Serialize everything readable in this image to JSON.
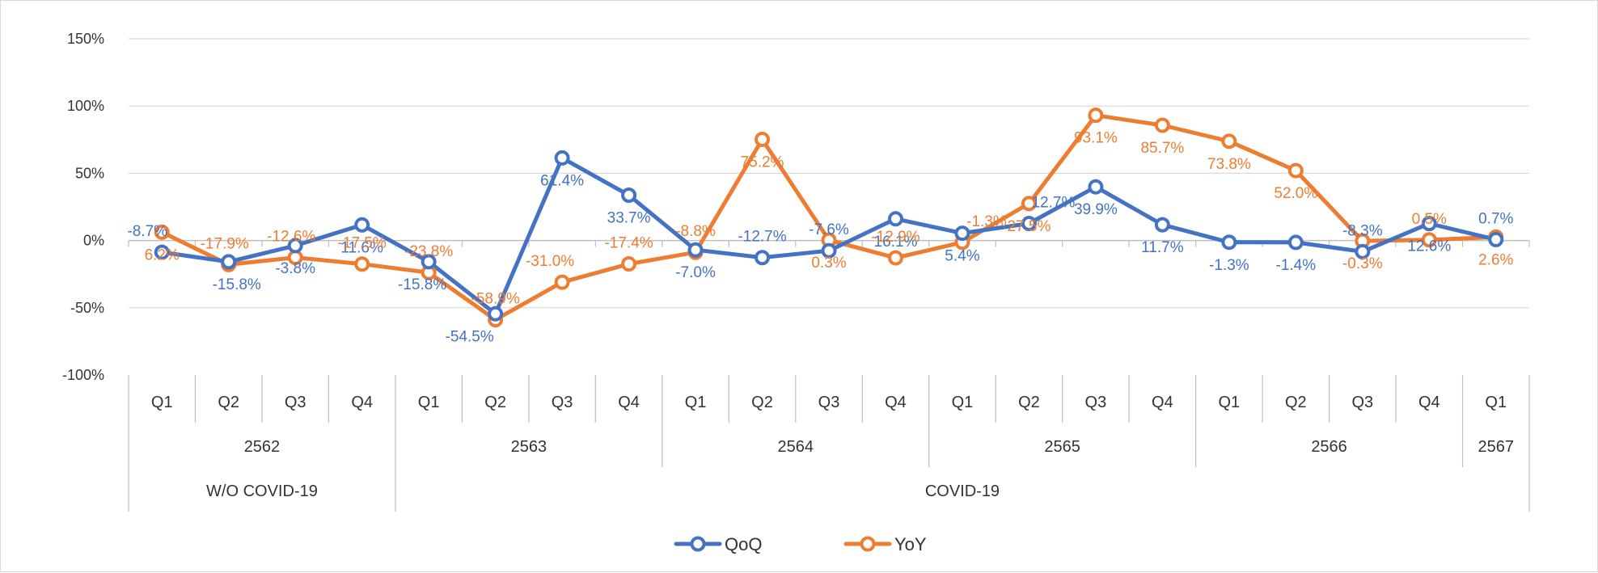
{
  "chart_data": {
    "type": "line",
    "title": "",
    "xlabel": "",
    "ylabel": "",
    "ylim": [
      -100,
      150
    ],
    "yticks": [
      "150%",
      "100%",
      "50%",
      "0%",
      "-50%",
      "-100%"
    ],
    "ytick_values": [
      150,
      100,
      50,
      0,
      -50,
      -100
    ],
    "grid": true,
    "legend_position": "bottom",
    "quarters": [
      "Q1",
      "Q2",
      "Q3",
      "Q4",
      "Q1",
      "Q2",
      "Q3",
      "Q4",
      "Q1",
      "Q2",
      "Q3",
      "Q4",
      "Q1",
      "Q2",
      "Q3",
      "Q4",
      "Q1",
      "Q2",
      "Q3",
      "Q4",
      "Q1"
    ],
    "years": [
      {
        "label": "2562",
        "count": 4
      },
      {
        "label": "2563",
        "count": 4
      },
      {
        "label": "2564",
        "count": 4
      },
      {
        "label": "2565",
        "count": 4
      },
      {
        "label": "2566",
        "count": 4
      },
      {
        "label": "2567",
        "count": 1
      }
    ],
    "periods": [
      {
        "label": "W/O COVID-19",
        "count": 4
      },
      {
        "label": "COVID-19",
        "count": 17
      }
    ],
    "series": [
      {
        "name": "QoQ",
        "color": "#4472C4",
        "values": [
          -8.7,
          -15.8,
          -3.8,
          11.6,
          -15.8,
          -54.5,
          61.4,
          33.7,
          -7.0,
          -12.7,
          -7.6,
          16.1,
          5.4,
          12.7,
          39.9,
          11.7,
          -1.3,
          -1.4,
          -8.3,
          12.6,
          0.7
        ],
        "labels": [
          "-8.7%",
          "-15.8%",
          "-3.8%",
          "11.6%",
          "-15.8%",
          "-54.5%",
          "61.4%",
          "33.7%",
          "-7.0%",
          "-12.7%",
          "-7.6%",
          "16.1%",
          "5.4%",
          "12.7%",
          "39.9%",
          "11.7%",
          "-1.3%",
          "-1.4%",
          "-8.3%",
          "12.6%",
          "0.7%"
        ]
      },
      {
        "name": "YoY",
        "color": "#ED7D31",
        "values": [
          6.2,
          -17.9,
          -12.6,
          -17.5,
          -23.8,
          -58.9,
          -31.0,
          -17.4,
          -8.8,
          75.2,
          0.3,
          -12.9,
          -1.3,
          27.5,
          93.1,
          85.7,
          73.8,
          52.0,
          -0.3,
          0.5,
          2.6
        ],
        "labels": [
          "6.2%",
          "-17.9%",
          "-12.6%",
          "-17.5%",
          "-23.8%",
          "-58.9%",
          "-31.0%",
          "-17.4%",
          "-8.8%",
          "75.2%",
          "0.3%",
          "-12.9%",
          "-1.3%",
          "27.5%",
          "93.1%",
          "85.7%",
          "73.8%",
          "52.0%",
          "-0.3%",
          "0.5%",
          "2.6%"
        ]
      }
    ]
  }
}
